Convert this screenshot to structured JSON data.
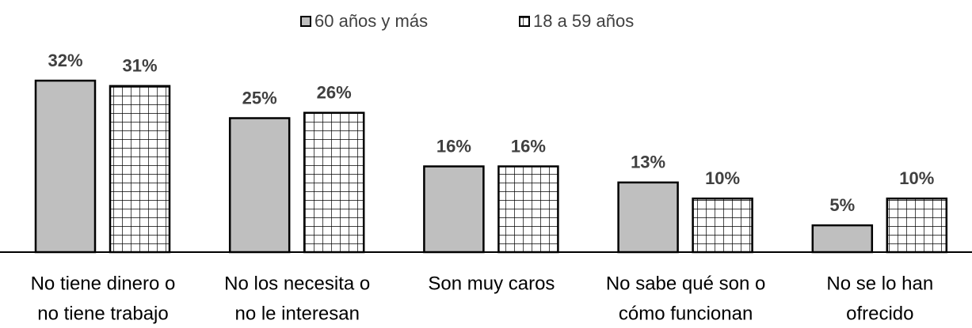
{
  "chart_data": {
    "type": "bar",
    "categories": [
      [
        "No tiene dinero o",
        "no tiene trabajo"
      ],
      [
        "No los necesita o",
        "no le interesan"
      ],
      [
        "Son muy caros"
      ],
      [
        "No sabe qué son o",
        "cómo funcionan"
      ],
      [
        "No se lo han",
        "ofrecido"
      ]
    ],
    "series": [
      {
        "name": "60 años y más",
        "color": "#bfbfbf",
        "values": [
          32,
          25,
          16,
          13,
          5
        ],
        "value_labels": [
          "32%",
          "25%",
          "16%",
          "13%",
          "5%"
        ]
      },
      {
        "name": "18 a 59 años",
        "color": "#ffffff",
        "pattern": "grid",
        "values": [
          31,
          26,
          16,
          10,
          10
        ],
        "value_labels": [
          "31%",
          "26%",
          "16%",
          "10%",
          "10%"
        ]
      }
    ],
    "legend": "top"
  }
}
